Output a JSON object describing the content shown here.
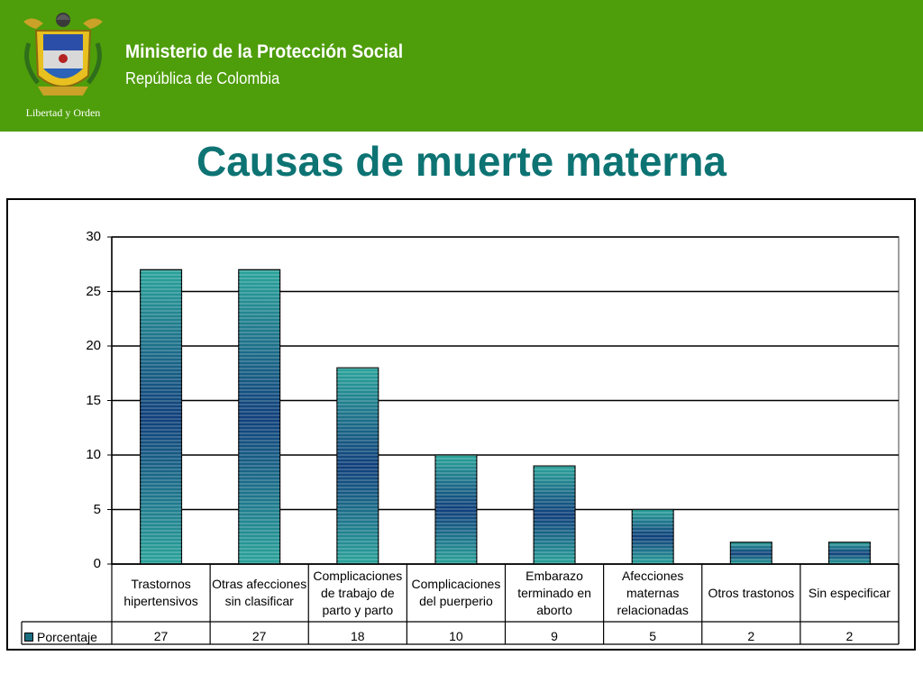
{
  "header": {
    "org_name": "Ministerio de la Protección Social",
    "org_sub": "República de Colombia",
    "logo_motto": "Libertad y Orden"
  },
  "page_title": "Causas de muerte materna",
  "colors": {
    "header": "#4e9d0a",
    "title": "#0d7373",
    "bar_light": "#2aa39a",
    "bar_dark": "#0f3f7a"
  },
  "chart_data": {
    "type": "bar",
    "categories": [
      "Trastornos hipertensivos",
      "Otras afecciones sin clasificar",
      "Complicaciones de trabajo de parto y parto",
      "Complicaciones del puerperio",
      "Embarazo terminado en aborto",
      "Afecciones maternas relacionadas",
      "Otros trastonos",
      "Sin especificar"
    ],
    "series": [
      {
        "name": "Porcentaje",
        "values": [
          27,
          27,
          18,
          10,
          9,
          5,
          2,
          2
        ]
      }
    ],
    "ylim": [
      0,
      30
    ],
    "yticks": [
      0,
      5,
      10,
      15,
      20,
      25,
      30
    ],
    "grid": true,
    "legend": "data-table"
  }
}
